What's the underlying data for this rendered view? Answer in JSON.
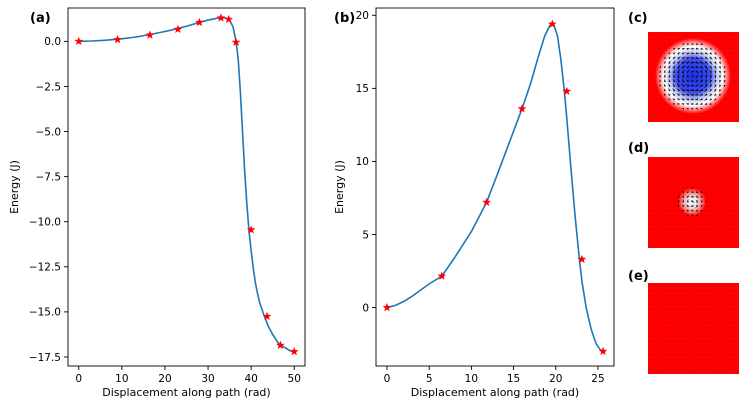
{
  "figure": {
    "panel_labels": [
      "(a)",
      "(b)",
      "(c)",
      "(d)",
      "(e)"
    ],
    "colors": {
      "curve": "#1f77b4",
      "marker": "#ff0000",
      "image_background": "#ff0000",
      "skyrmion_core": "#1a2ee6",
      "skyrmion_ring": "#ffffff",
      "arrow": "#000000"
    }
  },
  "chart_data": [
    {
      "id": "a",
      "type": "line",
      "title": "",
      "xlabel": "Displacement along path (rad)",
      "ylabel": "Energy (J)",
      "xlim": [
        -2.5,
        52.5
      ],
      "ylim": [
        -18.0,
        1.85
      ],
      "xticks": [
        0,
        10,
        20,
        30,
        40,
        50
      ],
      "xtick_labels": [
        "0",
        "10",
        "20",
        "30",
        "40",
        "50"
      ],
      "yticks": [
        0.0,
        -2.5,
        -5.0,
        -7.5,
        -10.0,
        -12.5,
        -15.0,
        -17.5
      ],
      "ytick_labels": [
        "0.0",
        "−2.5",
        "−5.0",
        "−7.5",
        "−10.0",
        "−12.5",
        "−15.0",
        "−17.5"
      ],
      "curve": {
        "x": [
          0,
          3,
          6,
          9,
          12,
          14,
          16.5,
          19,
          21,
          23,
          25,
          28,
          30,
          32,
          33,
          34,
          35,
          35.8,
          36.5,
          37,
          37.5,
          38,
          38.5,
          39,
          39.5,
          40,
          40.5,
          41,
          41.5,
          42,
          43,
          44,
          45,
          46.5,
          48,
          49,
          50
        ],
        "y": [
          0.0,
          0.02,
          0.06,
          0.12,
          0.2,
          0.27,
          0.38,
          0.5,
          0.6,
          0.72,
          0.84,
          1.05,
          1.18,
          1.28,
          1.32,
          1.3,
          1.18,
          0.8,
          0.0,
          -1.0,
          -2.8,
          -5.0,
          -7.2,
          -9.0,
          -10.5,
          -11.6,
          -12.6,
          -13.4,
          -14.0,
          -14.5,
          -15.2,
          -15.8,
          -16.25,
          -16.8,
          -17.0,
          -17.15,
          -17.2
        ]
      },
      "markers": {
        "x": [
          0,
          9,
          16.5,
          23,
          28,
          33,
          34.8,
          36.5,
          40,
          43.7,
          46.8,
          50
        ],
        "y": [
          0.0,
          0.1,
          0.35,
          0.67,
          1.05,
          1.3,
          1.22,
          -0.05,
          -10.45,
          -15.25,
          -16.85,
          -17.2
        ]
      }
    },
    {
      "id": "b",
      "type": "line",
      "title": "",
      "xlabel": "Displacement along path (rad)",
      "ylabel": "Energy (J)",
      "xlim": [
        -1.3,
        26.9
      ],
      "ylim": [
        -4.0,
        20.5
      ],
      "xticks": [
        0,
        5,
        10,
        15,
        20,
        25
      ],
      "xtick_labels": [
        "0",
        "5",
        "10",
        "15",
        "20",
        "25"
      ],
      "yticks": [
        0,
        5,
        10,
        15,
        20
      ],
      "ytick_labels": [
        "0",
        "5",
        "10",
        "15",
        "20"
      ],
      "curve": {
        "x": [
          0,
          1,
          2,
          3,
          4,
          5,
          6.5,
          8,
          10,
          11.8,
          13,
          14.5,
          16,
          17,
          18,
          18.7,
          19.3,
          19.7,
          20.2,
          20.6,
          21,
          21.3,
          21.8,
          22.3,
          22.8,
          23.1,
          23.6,
          24.2,
          24.8,
          25.3,
          25.6
        ],
        "y": [
          0.0,
          0.15,
          0.42,
          0.78,
          1.2,
          1.62,
          2.15,
          3.4,
          5.2,
          7.2,
          9.0,
          11.3,
          13.6,
          15.3,
          17.3,
          18.6,
          19.3,
          19.45,
          18.6,
          17.0,
          14.9,
          13.0,
          9.5,
          6.2,
          3.3,
          1.8,
          0.0,
          -1.5,
          -2.5,
          -2.9,
          -3.0
        ]
      },
      "markers": {
        "x": [
          0,
          6.5,
          11.8,
          16,
          19.6,
          21.3,
          23.1,
          25.6
        ],
        "y": [
          0.0,
          2.15,
          7.2,
          13.6,
          19.4,
          14.8,
          3.3,
          -3.0
        ]
      }
    }
  ]
}
